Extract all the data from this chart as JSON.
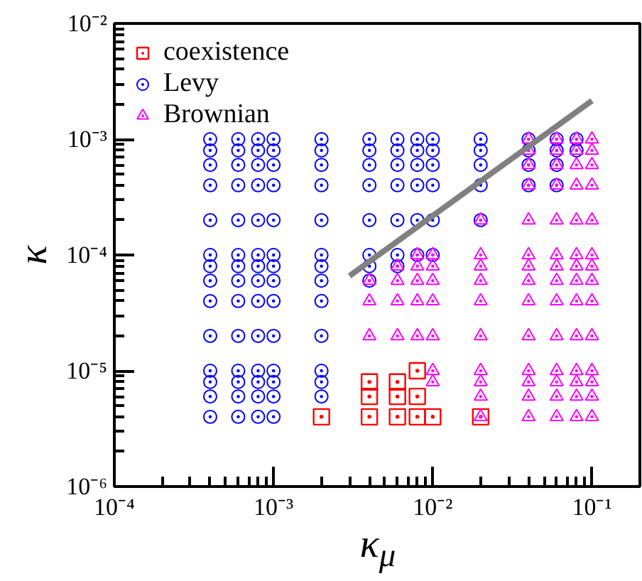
{
  "chart_data": {
    "type": "scatter",
    "xlabel": "κ$_{μ}$",
    "ylabel": "κ",
    "log": "xy",
    "grid": false,
    "legend": "top left",
    "xlim": [
      0.0001,
      0.2
    ],
    "ylim": [
      1e-06,
      0.01
    ],
    "xticks": [
      {
        "value": 0.0001,
        "label": "10⁻⁴"
      },
      {
        "value": 0.001,
        "label": "10⁻³"
      },
      {
        "value": 0.01,
        "label": "10⁻²"
      },
      {
        "value": 0.1,
        "label": "10⁻¹"
      }
    ],
    "yticks": [
      {
        "value": 1e-06,
        "label": "10⁻⁶"
      },
      {
        "value": 1e-05,
        "label": "10⁻⁵"
      },
      {
        "value": 0.0001,
        "label": "10⁻⁴"
      },
      {
        "value": 0.001,
        "label": "10⁻³"
      },
      {
        "value": 0.01,
        "label": "10⁻²"
      }
    ],
    "series": [
      {
        "name": "coexistence",
        "color": "#ff0000",
        "marker": "square",
        "x": [
          0.002,
          0.004,
          0.004,
          0.004,
          0.006,
          0.006,
          0.006,
          0.008,
          0.008,
          0.008,
          0.01,
          0.02
        ],
        "values": [
          4e-06,
          8e-06,
          6e-06,
          4e-06,
          8e-06,
          6e-06,
          4e-06,
          1e-05,
          6e-06,
          4e-06,
          4e-06,
          4e-06
        ]
      },
      {
        "name": "Levy",
        "color": "#0000ff",
        "marker": "circle",
        "x": [
          0.0004,
          0.0004,
          0.0004,
          0.0004,
          0.0004,
          0.0004,
          0.0004,
          0.0004,
          0.0004,
          0.0004,
          0.0004,
          0.0004,
          0.0004,
          0.0004,
          0.0006,
          0.0006,
          0.0006,
          0.0006,
          0.0006,
          0.0006,
          0.0006,
          0.0006,
          0.0006,
          0.0006,
          0.0006,
          0.0006,
          0.0006,
          0.0006,
          0.0008,
          0.0008,
          0.0008,
          0.0008,
          0.0008,
          0.0008,
          0.0008,
          0.0008,
          0.0008,
          0.0008,
          0.0008,
          0.0008,
          0.0008,
          0.0008,
          0.001,
          0.001,
          0.001,
          0.001,
          0.001,
          0.001,
          0.001,
          0.001,
          0.001,
          0.001,
          0.001,
          0.001,
          0.001,
          0.001,
          0.002,
          0.002,
          0.002,
          0.002,
          0.002,
          0.002,
          0.002,
          0.002,
          0.002,
          0.002,
          0.002,
          0.002,
          0.002,
          0.004,
          0.004,
          0.004,
          0.004,
          0.004,
          0.004,
          0.004,
          0.004,
          0.006,
          0.006,
          0.006,
          0.006,
          0.006,
          0.006,
          0.006,
          0.008,
          0.008,
          0.008,
          0.008,
          0.008,
          0.008,
          0.01,
          0.01,
          0.01,
          0.01,
          0.01,
          0.01,
          0.02,
          0.02,
          0.02,
          0.02,
          0.02,
          0.04,
          0.04,
          0.04,
          0.04,
          0.06,
          0.06,
          0.06,
          0.06,
          0.08,
          0.08
        ],
        "values": [
          0.001,
          0.0008,
          0.0006,
          0.0004,
          0.0002,
          0.0001,
          8e-05,
          6e-05,
          4e-05,
          2e-05,
          1e-05,
          8e-06,
          6e-06,
          4e-06,
          0.001,
          0.0008,
          0.0006,
          0.0004,
          0.0002,
          0.0001,
          8e-05,
          6e-05,
          4e-05,
          2e-05,
          1e-05,
          8e-06,
          6e-06,
          4e-06,
          0.001,
          0.0008,
          0.0006,
          0.0004,
          0.0002,
          0.0001,
          8e-05,
          6e-05,
          4e-05,
          2e-05,
          1e-05,
          8e-06,
          6e-06,
          4e-06,
          0.001,
          0.0008,
          0.0006,
          0.0004,
          0.0002,
          0.0001,
          8e-05,
          6e-05,
          4e-05,
          2e-05,
          1e-05,
          8e-06,
          6e-06,
          4e-06,
          0.001,
          0.0008,
          0.0006,
          0.0004,
          0.0002,
          0.0001,
          8e-05,
          6e-05,
          4e-05,
          2e-05,
          1e-05,
          8e-06,
          6e-06,
          0.001,
          0.0008,
          0.0006,
          0.0004,
          0.0002,
          0.0001,
          8e-05,
          6e-05,
          0.001,
          0.0008,
          0.0006,
          0.0004,
          0.0002,
          0.0001,
          8e-05,
          0.001,
          0.0008,
          0.0006,
          0.0004,
          0.0002,
          0.0001,
          0.001,
          0.0008,
          0.0006,
          0.0004,
          0.0002,
          0.0001,
          0.001,
          0.0008,
          0.0006,
          0.0004,
          0.0002,
          0.001,
          0.0008,
          0.0006,
          0.0004,
          0.001,
          0.0008,
          0.0006,
          0.0004,
          0.001,
          0.0008
        ]
      },
      {
        "name": "Brownian",
        "color": "#ff00ff",
        "marker": "triangle",
        "x": [
          0.004,
          0.004,
          0.004,
          0.006,
          0.006,
          0.006,
          0.006,
          0.008,
          0.008,
          0.008,
          0.008,
          0.008,
          0.01,
          0.01,
          0.01,
          0.01,
          0.01,
          0.01,
          0.01,
          0.02,
          0.02,
          0.02,
          0.02,
          0.02,
          0.02,
          0.02,
          0.02,
          0.02,
          0.02,
          0.04,
          0.04,
          0.04,
          0.04,
          0.04,
          0.04,
          0.04,
          0.04,
          0.04,
          0.04,
          0.04,
          0.04,
          0.04,
          0.04,
          0.06,
          0.06,
          0.06,
          0.06,
          0.06,
          0.06,
          0.06,
          0.06,
          0.06,
          0.06,
          0.06,
          0.06,
          0.06,
          0.06,
          0.08,
          0.08,
          0.08,
          0.08,
          0.08,
          0.08,
          0.08,
          0.08,
          0.08,
          0.08,
          0.08,
          0.08,
          0.08,
          0.08,
          0.1,
          0.1,
          0.1,
          0.1,
          0.1,
          0.1,
          0.1,
          0.1,
          0.1,
          0.1,
          0.1,
          0.1,
          0.1,
          0.1
        ],
        "values": [
          6e-05,
          4e-05,
          2e-05,
          8e-05,
          6e-05,
          4e-05,
          2e-05,
          0.0001,
          8e-05,
          6e-05,
          4e-05,
          2e-05,
          0.0001,
          8e-05,
          6e-05,
          4e-05,
          2e-05,
          1e-05,
          8e-06,
          0.0002,
          0.0001,
          8e-05,
          6e-05,
          4e-05,
          2e-05,
          1e-05,
          8e-06,
          6e-06,
          4e-06,
          0.001,
          0.0008,
          0.0006,
          0.0004,
          0.0002,
          0.0001,
          8e-05,
          6e-05,
          4e-05,
          2e-05,
          1e-05,
          8e-06,
          6e-06,
          4e-06,
          0.001,
          0.0008,
          0.0006,
          0.0004,
          0.0002,
          0.0001,
          8e-05,
          6e-05,
          4e-05,
          2e-05,
          1e-05,
          8e-06,
          6e-06,
          4e-06,
          0.001,
          0.0008,
          0.0006,
          0.0004,
          0.0002,
          0.0001,
          8e-05,
          6e-05,
          4e-05,
          2e-05,
          1e-05,
          8e-06,
          6e-06,
          4e-06,
          0.001,
          0.0008,
          0.0006,
          0.0004,
          0.0002,
          0.0001,
          8e-05,
          6e-05,
          4e-05,
          2e-05,
          1e-05,
          8e-06,
          6e-06,
          4e-06
        ]
      },
      {
        "type": "line",
        "color": "#808080",
        "x": [
          0.003,
          0.1
        ],
        "values": [
          6.6e-05,
          0.00215
        ]
      }
    ]
  }
}
